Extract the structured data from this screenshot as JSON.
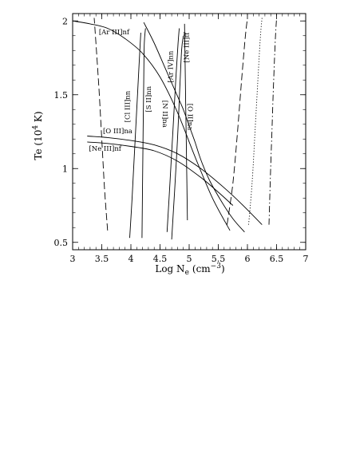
{
  "chart_data": {
    "type": "line",
    "xlabel": "Log N_e (cm^-3)",
    "xlabel_parts": {
      "main": "Log N",
      "sub": "e",
      "open": "(cm",
      "sup": "−3",
      "close": ")"
    },
    "ylabel": "Te (10^4 K)",
    "ylabel_parts": {
      "main": "Te (10",
      "sup": "4",
      "close": " K)"
    },
    "xlim": [
      3,
      7
    ],
    "ylim": [
      0.45,
      2.05
    ],
    "xticks": [
      3,
      3.5,
      4,
      4.5,
      5,
      5.5,
      6,
      6.5,
      7
    ],
    "xtick_labels": [
      "3",
      "3.5",
      "4",
      "4.5",
      "5",
      "5.5",
      "6",
      "6.5",
      "7"
    ],
    "yticks": [
      0.5,
      1,
      1.5,
      2
    ],
    "ytick_labels": [
      "0.5",
      "1",
      "1.5",
      "2"
    ],
    "grid": false,
    "series": [
      {
        "name": "[Ar III]nf",
        "style": "solid",
        "x": [
          3.0,
          3.3,
          3.6,
          3.9,
          4.2,
          4.5,
          4.8,
          5.1,
          5.4,
          5.7
        ],
        "y": [
          2.0,
          1.98,
          1.95,
          1.88,
          1.78,
          1.62,
          1.38,
          1.08,
          0.8,
          0.58
        ]
      },
      {
        "name": "[O III]na",
        "style": "solid",
        "x": [
          3.25,
          3.6,
          4.0,
          4.4,
          4.8,
          5.2,
          5.6,
          5.9,
          6.25
        ],
        "y": [
          1.22,
          1.21,
          1.19,
          1.16,
          1.1,
          1.0,
          0.87,
          0.76,
          0.62
        ]
      },
      {
        "name": "[Ne III]nf",
        "style": "solid",
        "x": [
          3.25,
          3.6,
          4.0,
          4.4,
          4.8,
          5.2,
          5.5,
          5.75
        ],
        "y": [
          1.18,
          1.17,
          1.15,
          1.12,
          1.05,
          0.94,
          0.84,
          0.75
        ]
      },
      {
        "name": "[Cl III]nn",
        "style": "solid",
        "x": [
          3.98,
          4.02,
          4.06,
          4.1,
          4.14,
          4.17
        ],
        "y": [
          0.53,
          0.8,
          1.1,
          1.4,
          1.7,
          1.92
        ]
      },
      {
        "name": "[S II]nn",
        "style": "solid",
        "x": [
          4.19,
          4.2,
          4.21,
          4.22,
          4.23,
          4.25
        ],
        "y": [
          0.53,
          0.9,
          1.25,
          1.6,
          1.85,
          1.95
        ]
      },
      {
        "name": "[N II]na",
        "style": "solid",
        "x": [
          4.22,
          4.4,
          4.6,
          4.8,
          4.9,
          5.0,
          5.1,
          5.2,
          5.35,
          5.55,
          5.75,
          5.95
        ],
        "y": [
          1.99,
          1.85,
          1.67,
          1.49,
          1.4,
          1.29,
          1.18,
          1.06,
          0.92,
          0.78,
          0.66,
          0.57
        ]
      },
      {
        "name": "[Ar IV]nn",
        "style": "solid",
        "x": [
          4.62,
          4.67,
          4.72,
          4.77,
          4.81,
          4.83
        ],
        "y": [
          0.57,
          0.9,
          1.25,
          1.6,
          1.85,
          1.95
        ]
      },
      {
        "name": "[O II]na",
        "style": "solid",
        "x": [
          4.7,
          4.75,
          4.8,
          4.84,
          4.87,
          4.9
        ],
        "y": [
          0.52,
          0.85,
          1.2,
          1.55,
          1.8,
          1.9
        ]
      },
      {
        "name": "[Ne III]ff",
        "style": "solid",
        "x": [
          4.92,
          4.93,
          4.94,
          4.95,
          4.96,
          4.97
        ],
        "y": [
          1.98,
          1.72,
          1.45,
          1.18,
          0.92,
          0.65
        ]
      },
      {
        "name": "",
        "style": "longdash",
        "x": [
          3.6,
          3.55,
          3.5,
          3.45,
          3.4,
          3.37
        ],
        "y": [
          0.58,
          0.85,
          1.2,
          1.55,
          1.85,
          2.02
        ]
      },
      {
        "name": "",
        "style": "longdash",
        "x": [
          5.65,
          5.75,
          5.83,
          5.9,
          5.96,
          6.0
        ],
        "y": [
          0.62,
          0.9,
          1.25,
          1.6,
          1.88,
          2.02
        ]
      },
      {
        "name": "",
        "style": "dotted",
        "x": [
          6.02,
          6.08,
          6.13,
          6.18,
          6.22,
          6.25
        ],
        "y": [
          0.62,
          0.9,
          1.25,
          1.6,
          1.88,
          2.02
        ]
      },
      {
        "name": "",
        "style": "dashdot",
        "x": [
          6.37,
          6.39,
          6.42,
          6.45,
          6.48,
          6.5
        ],
        "y": [
          0.62,
          0.9,
          1.25,
          1.6,
          1.88,
          2.02
        ]
      }
    ],
    "annotations": [
      {
        "text": "[Ar III]nf",
        "x": 3.45,
        "y": 1.91,
        "rotate": 0
      },
      {
        "text": "[O III]na",
        "x": 3.52,
        "y": 1.24,
        "rotate": 0
      },
      {
        "text": "[Ne III]nf",
        "x": 3.28,
        "y": 1.12,
        "rotate": 0
      },
      {
        "text": "[Cl III]nn",
        "x": 3.98,
        "y": 1.42,
        "rotate": -90
      },
      {
        "text": "[S II]nn",
        "x": 4.34,
        "y": 1.47,
        "rotate": -90
      },
      {
        "text": "[N II]na",
        "x": 4.55,
        "y": 1.37,
        "rotate": 90
      },
      {
        "text": "[Ar IV]nn",
        "x": 4.72,
        "y": 1.69,
        "rotate": -90
      },
      {
        "text": "[Ne III]ff",
        "x": 4.99,
        "y": 1.82,
        "rotate": -90
      },
      {
        "text": "[O II]na",
        "x": 4.98,
        "y": 1.35,
        "rotate": 90
      }
    ]
  }
}
